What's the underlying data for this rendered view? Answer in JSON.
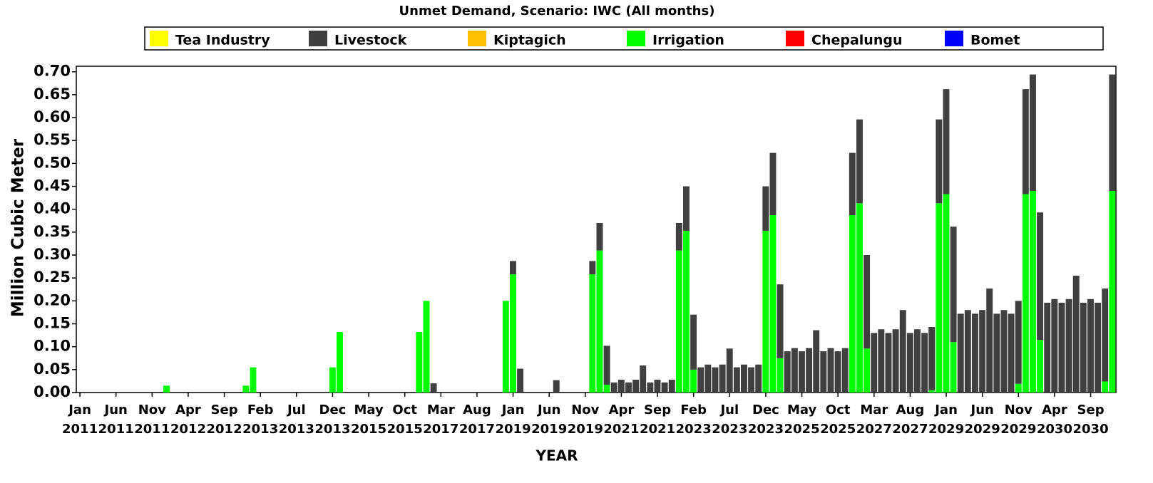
{
  "chart_data": {
    "type": "stacked_bar",
    "title": "Unmet Demand, Scenario: IWC (All months)",
    "x_label": "YEAR",
    "y_label": "Million Cubic Meter",
    "legend": "top",
    "ylim": [
      0,
      0.712
    ],
    "yticks": [
      {
        "value": 0,
        "label": "0.00"
      },
      {
        "value": 0.05,
        "label": "0.05"
      },
      {
        "value": 0.1,
        "label": "0.10"
      },
      {
        "value": 0.15,
        "label": "0.15"
      },
      {
        "value": 0.2,
        "label": "0.20"
      },
      {
        "value": 0.25,
        "label": "0.25"
      },
      {
        "value": 0.3,
        "label": "0.30"
      },
      {
        "value": 0.35,
        "label": "0.35"
      },
      {
        "value": 0.4,
        "label": "0.40"
      },
      {
        "value": 0.45,
        "label": "0.45"
      },
      {
        "value": 0.5,
        "label": "0.50"
      },
      {
        "value": 0.55,
        "label": "0.55"
      },
      {
        "value": 0.6,
        "label": "0.60"
      },
      {
        "value": 0.65,
        "label": "0.65"
      },
      {
        "value": 0.7,
        "label": "0.70"
      }
    ],
    "categories": [
      "Jan 2011",
      null,
      null,
      null,
      null,
      "Jun 2011",
      null,
      null,
      null,
      null,
      "Nov 2011",
      null,
      null,
      null,
      null,
      "Apr 2012",
      null,
      null,
      null,
      null,
      "Sep 2012",
      null,
      null,
      null,
      null,
      "Feb 2013",
      null,
      null,
      null,
      null,
      "Jul 2013",
      null,
      null,
      null,
      null,
      "Dec 2013",
      null,
      null,
      null,
      null,
      "May 2015",
      null,
      null,
      null,
      null,
      "Oct 2015",
      null,
      null,
      null,
      null,
      "Mar 2017",
      null,
      null,
      null,
      null,
      "Aug 2017",
      null,
      null,
      null,
      null,
      "Jan 2019",
      null,
      null,
      null,
      null,
      "Jun 2019",
      null,
      null,
      null,
      null,
      "Nov 2019",
      null,
      null,
      null,
      null,
      "Apr 2021",
      null,
      null,
      null,
      null,
      "Sep 2021",
      null,
      null,
      null,
      null,
      "Feb 2023",
      null,
      null,
      null,
      null,
      "Jul 2023",
      null,
      null,
      null,
      null,
      "Dec 2023",
      null,
      null,
      null,
      null,
      "May 2025",
      null,
      null,
      null,
      null,
      "Oct 2025",
      null,
      null,
      null,
      null,
      "Mar 2027",
      null,
      null,
      null,
      null,
      "Aug 2027",
      null,
      null,
      null,
      null,
      "Jan 2029",
      null,
      null,
      null,
      null,
      "Jun 2029",
      null,
      null,
      null,
      null,
      "Nov 2029",
      null,
      null,
      null,
      null,
      "Apr 2030",
      null,
      null,
      null,
      null,
      "Sep 2030",
      null,
      null,
      null
    ],
    "series": [
      {
        "name": "Tea Industry",
        "color": "#ffff00",
        "values": [
          0,
          0,
          0,
          0,
          0,
          0,
          0,
          0,
          0,
          0,
          0,
          0,
          0,
          0,
          0,
          0,
          0,
          0,
          0,
          0,
          0,
          0,
          0,
          0,
          0,
          0,
          0,
          0,
          0,
          0,
          0,
          0,
          0,
          0,
          0,
          0,
          0,
          0,
          0,
          0,
          0,
          0,
          0,
          0,
          0,
          0,
          0,
          0,
          0,
          0,
          0,
          0,
          0,
          0,
          0,
          0,
          0,
          0,
          0,
          0,
          0,
          0,
          0,
          0,
          0,
          0,
          0,
          0,
          0,
          0,
          0,
          0,
          0,
          0,
          0,
          0,
          0,
          0,
          0,
          0,
          0,
          0,
          0,
          0,
          0,
          0,
          0,
          0,
          0,
          0,
          0,
          0,
          0,
          0,
          0,
          0,
          0,
          0,
          0,
          0,
          0,
          0,
          0,
          0,
          0,
          0,
          0,
          0,
          0,
          0,
          0,
          0,
          0,
          0,
          0,
          0,
          0,
          0,
          0,
          0,
          0,
          0,
          0,
          0,
          0,
          0,
          0,
          0,
          0,
          0,
          0,
          0,
          0,
          0,
          0,
          0,
          0,
          0,
          0,
          0,
          0,
          0,
          0,
          0
        ]
      },
      {
        "name": "Livestock",
        "color": "#404040",
        "values": [
          0,
          0,
          0,
          0,
          0,
          0,
          0,
          0,
          0,
          0,
          0,
          0,
          0,
          0,
          0,
          0,
          0,
          0,
          0,
          0,
          0,
          0,
          0,
          0,
          0,
          0,
          0,
          0,
          0,
          0,
          0,
          0,
          0,
          0,
          0,
          0,
          0,
          0,
          0,
          0,
          0,
          0,
          0,
          0,
          0,
          0,
          0,
          0,
          0,
          0.02,
          0,
          0,
          0,
          0,
          0,
          0,
          0,
          0,
          0,
          0,
          0.029,
          0.052,
          0,
          0,
          0,
          0,
          0.027,
          0,
          0,
          0,
          0,
          0.029,
          0.06,
          0.085,
          0.022,
          0.028,
          0.022,
          0.028,
          0.059,
          0.022,
          0.028,
          0.022,
          0.028,
          0.06,
          0.097,
          0.12,
          0.055,
          0.061,
          0.055,
          0.061,
          0.096,
          0.055,
          0.061,
          0.055,
          0.061,
          0.097,
          0.136,
          0.161,
          0.09,
          0.097,
          0.09,
          0.097,
          0.136,
          0.09,
          0.097,
          0.09,
          0.097,
          0.136,
          0.183,
          0.204,
          0.13,
          0.138,
          0.13,
          0.138,
          0.18,
          0.13,
          0.138,
          0.13,
          0.138,
          0.183,
          0.229,
          0.252,
          0.172,
          0.18,
          0.172,
          0.18,
          0.227,
          0.172,
          0.18,
          0.172,
          0.181,
          0.229,
          0.254,
          0.278,
          0.196,
          0.204,
          0.196,
          0.204,
          0.255,
          0.196,
          0.204,
          0.196,
          0.203,
          0.254
        ]
      },
      {
        "name": "Kiptagich",
        "color": "#ffc000",
        "values": [
          0,
          0,
          0,
          0,
          0,
          0,
          0,
          0,
          0,
          0,
          0,
          0,
          0,
          0,
          0,
          0,
          0,
          0,
          0,
          0,
          0,
          0,
          0,
          0,
          0,
          0,
          0,
          0,
          0,
          0,
          0,
          0,
          0,
          0,
          0,
          0,
          0,
          0,
          0,
          0,
          0,
          0,
          0,
          0,
          0,
          0,
          0,
          0,
          0,
          0,
          0,
          0,
          0,
          0,
          0,
          0,
          0,
          0,
          0,
          0,
          0,
          0,
          0,
          0,
          0,
          0,
          0,
          0,
          0,
          0,
          0,
          0,
          0,
          0,
          0,
          0,
          0,
          0,
          0,
          0,
          0,
          0,
          0,
          0,
          0,
          0,
          0,
          0,
          0,
          0,
          0,
          0,
          0,
          0,
          0,
          0,
          0,
          0,
          0,
          0,
          0,
          0,
          0,
          0,
          0,
          0,
          0,
          0,
          0,
          0,
          0,
          0,
          0,
          0,
          0,
          0,
          0,
          0,
          0,
          0,
          0,
          0,
          0,
          0,
          0,
          0,
          0,
          0,
          0,
          0,
          0,
          0,
          0,
          0,
          0,
          0,
          0,
          0,
          0,
          0,
          0,
          0,
          0,
          0
        ]
      },
      {
        "name": "Irrigation",
        "color": "#00ff00",
        "values": [
          0,
          0,
          0,
          0,
          0,
          0,
          0,
          0,
          0,
          0,
          0,
          0,
          0.015,
          0,
          0,
          0,
          0,
          0,
          0,
          0,
          0,
          0,
          0,
          0.015,
          0.055,
          0,
          0,
          0,
          0,
          0,
          0,
          0,
          0,
          0,
          0,
          0.055,
          0.132,
          0,
          0,
          0,
          0,
          0,
          0,
          0,
          0,
          0,
          0,
          0.132,
          0.2,
          0,
          0,
          0,
          0,
          0,
          0,
          0,
          0,
          0,
          0,
          0.2,
          0.258,
          0,
          0,
          0,
          0,
          0,
          0,
          0,
          0,
          0,
          0,
          0.258,
          0.31,
          0.017,
          0,
          0,
          0,
          0,
          0,
          0,
          0,
          0,
          0,
          0.31,
          0.353,
          0.05,
          0,
          0,
          0,
          0,
          0,
          0,
          0,
          0,
          0,
          0.353,
          0.387,
          0.075,
          0,
          0,
          0,
          0,
          0,
          0,
          0,
          0,
          0,
          0.387,
          0.413,
          0.096,
          0,
          0,
          0,
          0,
          0,
          0,
          0,
          0,
          0.005,
          0.413,
          0.433,
          0.11,
          0,
          0,
          0,
          0,
          0,
          0,
          0,
          0,
          0.019,
          0.433,
          0.44,
          0.115,
          0,
          0,
          0,
          0,
          0,
          0,
          0,
          0,
          0.024,
          0.44
        ]
      },
      {
        "name": "Chepalungu",
        "color": "#ff0000",
        "values": [
          0,
          0,
          0,
          0,
          0,
          0,
          0,
          0,
          0,
          0,
          0,
          0,
          0,
          0,
          0,
          0,
          0,
          0,
          0,
          0,
          0,
          0,
          0,
          0,
          0,
          0,
          0,
          0,
          0,
          0,
          0,
          0,
          0,
          0,
          0,
          0,
          0,
          0,
          0,
          0,
          0,
          0,
          0,
          0,
          0,
          0,
          0,
          0,
          0,
          0,
          0,
          0,
          0,
          0,
          0,
          0,
          0,
          0,
          0,
          0,
          0,
          0,
          0,
          0,
          0,
          0,
          0,
          0,
          0,
          0,
          0,
          0,
          0,
          0,
          0,
          0,
          0,
          0,
          0,
          0,
          0,
          0,
          0,
          0,
          0,
          0,
          0,
          0,
          0,
          0,
          0,
          0,
          0,
          0,
          0,
          0,
          0,
          0,
          0,
          0,
          0,
          0,
          0,
          0,
          0,
          0,
          0,
          0,
          0,
          0,
          0,
          0,
          0,
          0,
          0,
          0,
          0,
          0,
          0,
          0,
          0,
          0,
          0,
          0,
          0,
          0,
          0,
          0,
          0,
          0,
          0,
          0,
          0,
          0,
          0,
          0,
          0,
          0,
          0,
          0,
          0,
          0,
          0,
          0
        ]
      },
      {
        "name": "Bomet",
        "color": "#0000ff",
        "values": [
          0,
          0,
          0,
          0,
          0,
          0,
          0,
          0,
          0,
          0,
          0,
          0,
          0,
          0,
          0,
          0,
          0,
          0,
          0,
          0,
          0,
          0,
          0,
          0,
          0,
          0,
          0,
          0,
          0,
          0,
          0,
          0,
          0,
          0,
          0,
          0,
          0,
          0,
          0,
          0,
          0,
          0,
          0,
          0,
          0,
          0,
          0,
          0,
          0,
          0,
          0,
          0,
          0,
          0,
          0,
          0,
          0,
          0,
          0,
          0,
          0,
          0,
          0,
          0,
          0,
          0,
          0,
          0,
          0,
          0,
          0,
          0,
          0,
          0,
          0,
          0,
          0,
          0,
          0,
          0,
          0,
          0,
          0,
          0,
          0,
          0,
          0,
          0,
          0,
          0,
          0,
          0,
          0,
          0,
          0,
          0,
          0,
          0,
          0,
          0,
          0,
          0,
          0,
          0,
          0,
          0,
          0,
          0,
          0,
          0,
          0,
          0,
          0,
          0,
          0,
          0,
          0,
          0,
          0,
          0,
          0,
          0,
          0,
          0,
          0,
          0,
          0,
          0,
          0,
          0,
          0,
          0,
          0,
          0,
          0,
          0,
          0,
          0,
          0,
          0,
          0,
          0,
          0,
          0
        ]
      }
    ]
  }
}
